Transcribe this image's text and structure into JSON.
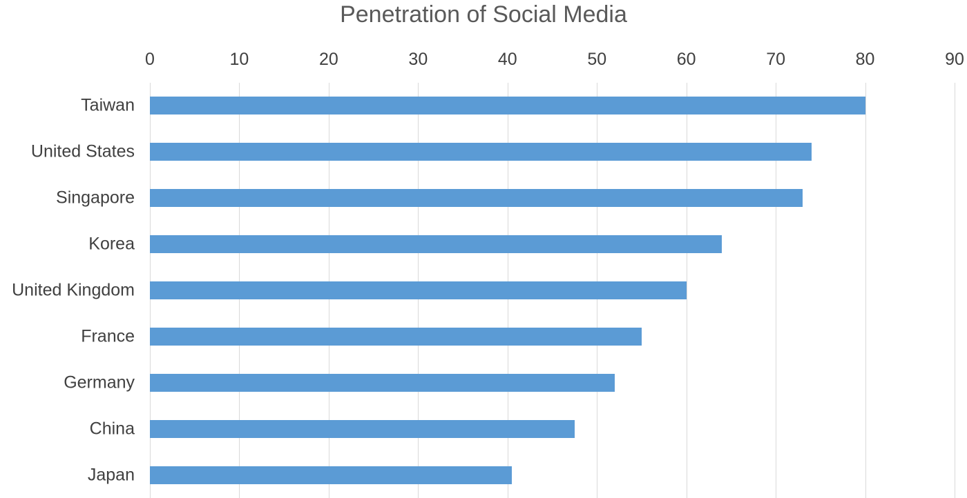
{
  "chart_data": {
    "type": "bar",
    "orientation": "horizontal",
    "title": "Penetration of Social Media",
    "categories": [
      "Taiwan",
      "United States",
      "Singapore",
      "Korea",
      "United Kingdom",
      "France",
      "Germany",
      "China",
      "Japan"
    ],
    "values": [
      80,
      74,
      73,
      64,
      60,
      55,
      52,
      47.5,
      40.5
    ],
    "xlabel": "",
    "ylabel": "",
    "xlim": [
      0,
      90
    ],
    "x_ticks": [
      0,
      10,
      20,
      30,
      40,
      50,
      60,
      70,
      80,
      90
    ],
    "grid": "vertical gridlines on",
    "legend": "none",
    "colors": {
      "bar": "#5B9BD5",
      "title_text": "#595959",
      "axis_text": "#404040",
      "gridline": "#D9D9D9"
    }
  }
}
